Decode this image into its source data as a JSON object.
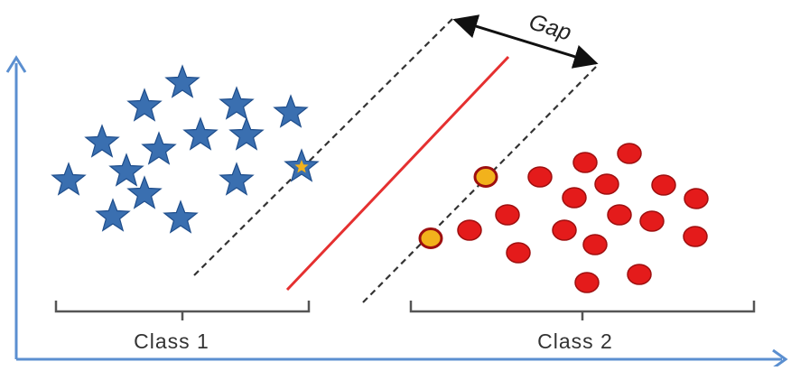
{
  "labels": {
    "gap": "Gap",
    "class1": "Class 1",
    "class2": "Class 2"
  },
  "colors": {
    "axis": "#5b8fd0",
    "star": "#3a6fb0",
    "star_stroke": "#1f4e8c",
    "dot": "#e41b1b",
    "dot_stroke": "#9e0f0f",
    "support_dot": "#f2b21c",
    "support_star_center": "#f2b21c",
    "hyperplane": "#e53030",
    "margin_line": "#333333",
    "bracket": "#555555"
  },
  "icons": {
    "class1_marker": "star-icon",
    "class2_marker": "circle-icon",
    "gap_arrow": "double-arrow-icon"
  }
}
